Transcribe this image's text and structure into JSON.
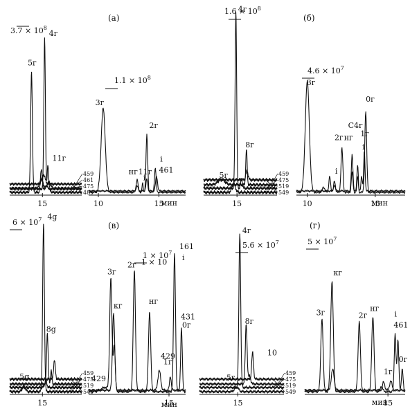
{
  "chart_data": [
    {
      "type": "line",
      "panel_letter": "(а)",
      "xunit": "мин",
      "blocks": [
        {
          "xticks": [
            {
              "label": "15",
              "x": 15
            }
          ],
          "xlim": [
            12,
            18.6
          ],
          "scale": "3.7 × 10",
          "scale_exp": "8",
          "channels": [
            "459",
            "461",
            "475",
            "489"
          ],
          "channel_key": [
            459,
            461,
            475,
            489
          ],
          "ylim": [
            0,
            1
          ],
          "series": [
            {
              "name": "459",
              "peaks": [
                [
                  14.0,
                  0.78,
                  0.08
                ],
                [
                  14.9,
                  0.15,
                  0.08
                ],
                [
                  15.4,
                  0.04,
                  0.2
                ]
              ]
            },
            {
              "name": "461",
              "peaks": [
                [
                  15.2,
                  0.98,
                  0.07
                ],
                [
                  15.5,
                  0.16,
                  0.06
                ]
              ]
            },
            {
              "name": "475",
              "peaks": [
                [
                  14.9,
                  0.06,
                  0.15
                ],
                [
                  15.6,
                  0.04,
                  0.15
                ]
              ]
            },
            {
              "name": "489",
              "peaks": [
                [
                  15.1,
                  0.06,
                  0.15
                ]
              ]
            }
          ],
          "labels": [
            {
              "text": "5г",
              "x": 13.65,
              "y": 0.81
            },
            {
              "text": "4г",
              "x": 15.6,
              "y": 1.0
            },
            {
              "text": "11г",
              "x": 15.9,
              "y": 0.19
            }
          ]
        },
        {
          "xticks": [
            {
              "label": "10",
              "x": 10
            },
            {
              "label": "15",
              "x": 15
            }
          ],
          "xlim": [
            9.2,
            17.2
          ],
          "scale": "1.1 × 10",
          "scale_exp": "8",
          "channels": [],
          "channel_key": [],
          "ylim": [
            0,
            1
          ],
          "series": [
            {
              "name": "main",
              "peaks": [
                [
                  10.4,
                  0.85,
                  0.17
                ],
                [
                  13.2,
                  0.13,
                  0.08
                ],
                [
                  13.65,
                  0.09,
                  0.05
                ],
                [
                  14.0,
                  0.58,
                  0.07
                ],
                [
                  14.7,
                  0.24,
                  0.07
                ]
              ]
            },
            {
              "name": "secondary",
              "peaks": [
                [
                  13.2,
                  0.05,
                  0.08
                ],
                [
                  14.0,
                  0.12,
                  0.07
                ],
                [
                  14.8,
                  0.15,
                  0.08
                ]
              ]
            }
          ],
          "labels": [
            {
              "text": "3г",
              "x": 9.75,
              "y": 0.86
            },
            {
              "text": "нг",
              "x": 12.5,
              "y": 0.16
            },
            {
              "text": "11г",
              "x": 13.3,
              "y": 0.16
            },
            {
              "text": "i",
              "x": 13.7,
              "y": 0.1
            },
            {
              "text": "2г",
              "x": 14.2,
              "y": 0.63
            },
            {
              "text": "i",
              "x": 15.1,
              "y": 0.29
            },
            {
              "text": "461",
              "x": 15.0,
              "y": 0.18
            }
          ]
        }
      ]
    },
    {
      "type": "line",
      "panel_letter": "(б)",
      "xunit": "мин",
      "blocks": [
        {
          "xticks": [
            {
              "label": "15",
              "x": 15
            }
          ],
          "xlim": [
            12,
            18.6
          ],
          "scale": "1.6 × 10",
          "scale_exp": "8",
          "channels": [
            "459",
            "475",
            "519",
            "549"
          ],
          "channel_key": [
            459,
            475,
            519,
            549
          ],
          "ylim": [
            0,
            1
          ],
          "series": [
            {
              "name": "459",
              "peaks": [
                [
                  14.7,
                  0.05,
                  0.15
                ]
              ]
            },
            {
              "name": "475",
              "peaks": [
                [
                  14.9,
                  0.99,
                  0.07
                ],
                [
                  15.4,
                  0.05,
                  0.08
                ]
              ]
            },
            {
              "name": "519",
              "peaks": [
                [
                  15.85,
                  0.2,
                  0.06
                ],
                [
                  13.6,
                  0.03,
                  0.3
                ]
              ]
            },
            {
              "name": "549",
              "peaks": [
                [
                  15.9,
                  0.05,
                  0.1
                ]
              ]
            }
          ],
          "labels": [
            {
              "text": "4г",
              "x": 15.1,
              "y": 1.0
            },
            {
              "text": "8г",
              "x": 15.75,
              "y": 0.24
            },
            {
              "text": "5г",
              "x": 13.4,
              "y": 0.07
            }
          ]
        },
        {
          "xticks": [
            {
              "label": "10",
              "x": 10
            },
            {
              "label": "15",
              "x": 15
            }
          ],
          "xlim": [
            9.2,
            17.2
          ],
          "scale": "4.6 × 10",
          "scale_exp": "7",
          "channels": [],
          "channel_key": [],
          "ylim": [
            0,
            1
          ],
          "series": [
            {
              "name": "main",
              "peaks": [
                [
                  10.0,
                  0.93,
                  0.15
                ],
                [
                  11.2,
                  0.04,
                  0.1
                ],
                [
                  11.65,
                  0.14,
                  0.06
                ],
                [
                  12.0,
                  0.1,
                  0.06
                ],
                [
                  12.55,
                  0.37,
                  0.07
                ],
                [
                  13.3,
                  0.17,
                  0.06
                ],
                [
                  13.7,
                  0.13,
                  0.05
                ],
                [
                  14.3,
                  0.68,
                  0.07
                ]
              ]
            },
            {
              "name": "secondary",
              "peaks": [
                [
                  12.0,
                  0.05,
                  0.06
                ],
                [
                  13.3,
                  0.3,
                  0.06
                ],
                [
                  13.7,
                  0.22,
                  0.05
                ],
                [
                  14.0,
                  0.12,
                  0.05
                ],
                [
                  14.2,
                  0.34,
                  0.05
                ]
              ]
            }
          ],
          "labels": [
            {
              "text": "3г",
              "x": 9.95,
              "y": 0.88
            },
            {
              "text": "i",
              "x": 12.05,
              "y": 0.14
            },
            {
              "text": "2г",
              "x": 12.0,
              "y": 0.42
            },
            {
              "text": "нг",
              "x": 12.7,
              "y": 0.42
            },
            {
              "text": "C4г",
              "x": 13.0,
              "y": 0.52
            },
            {
              "text": "1г",
              "x": 13.9,
              "y": 0.45
            },
            {
              "text": "i",
              "x": 14.05,
              "y": 0.34
            },
            {
              "text": "0г",
              "x": 14.3,
              "y": 0.74
            }
          ]
        }
      ]
    },
    {
      "type": "line",
      "panel_letter": "(в)",
      "xunit": "мин",
      "blocks": [
        {
          "xticks": [
            {
              "label": "15",
              "x": 15
            }
          ],
          "xlim": [
            12,
            18.6
          ],
          "scale": "6 × 10",
          "scale_exp": "7",
          "channels": [
            "459",
            "475",
            "519",
            "549"
          ],
          "channel_key": [
            459,
            475,
            519,
            549
          ],
          "ylim": [
            0,
            1
          ],
          "series": [
            {
              "name": "459",
              "peaks": [
                [
                  13.3,
                  0.03,
                  0.15
                ],
                [
                  15.1,
                  0.98,
                  0.08
                ]
              ]
            },
            {
              "name": "475",
              "peaks": [
                [
                  15.3,
                  0.04,
                  0.1
                ]
              ]
            },
            {
              "name": "519",
              "peaks": [
                [
                  15.45,
                  0.3,
                  0.07
                ],
                [
                  15.8,
                  0.08,
                  0.06
                ]
              ]
            },
            {
              "name": "549",
              "peaks": [
                [
                  16.1,
                  0.11,
                  0.08
                ]
              ]
            }
          ],
          "labels": [
            {
              "text": "4g",
              "x": 15.45,
              "y": 1.0
            },
            {
              "text": "8g",
              "x": 15.35,
              "y": 0.34
            },
            {
              "text": "5g",
              "x": 12.9,
              "y": 0.06
            }
          ]
        },
        {
          "xticks": [
            {
              "label": "15",
              "x": 15
            }
          ],
          "xlim": [
            9.2,
            16.2
          ],
          "scale": "1 × 10",
          "scale_exp": "7",
          "channels": [],
          "channel_key": [],
          "ylim": [
            0,
            1
          ],
          "series": [
            {
              "name": "main",
              "peaks": [
                [
                  10.4,
                  0.03,
                  0.3
                ],
                [
                  10.8,
                  0.8,
                  0.08
                ],
                [
                  11.05,
                  0.33,
                  0.07
                ],
                [
                  12.5,
                  0.86,
                  0.08
                ],
                [
                  13.6,
                  0.57,
                  0.08
                ],
                [
                  15.4,
                  0.98,
                  0.07
                ],
                [
                  15.9,
                  0.45,
                  0.06
                ]
              ]
            },
            {
              "name": "secondary",
              "peaks": [
                [
                  11.0,
                  0.55,
                  0.08
                ],
                [
                  14.3,
                  0.14,
                  0.1
                ],
                [
                  15.1,
                  0.1,
                  0.06
                ]
              ]
            }
          ],
          "labels": [
            {
              "text": "3г",
              "x": 10.55,
              "y": 0.82
            },
            {
              "text": "кг",
              "x": 11.0,
              "y": 0.58
            },
            {
              "text": "429",
              "x": 9.4,
              "y": 0.06
            },
            {
              "text": "2г",
              "x": 12.0,
              "y": 0.87
            },
            {
              "text": "нг",
              "x": 13.55,
              "y": 0.61
            },
            {
              "text": "1 × 10",
              "x": 13.0,
              "y": 0.89
            },
            {
              "text": "429",
              "x": 14.4,
              "y": 0.22
            },
            {
              "text": "1г",
              "x": 14.6,
              "y": 0.18
            },
            {
              "text": "161",
              "x": 15.75,
              "y": 1.0
            },
            {
              "text": "i",
              "x": 15.95,
              "y": 0.92
            },
            {
              "text": "431",
              "x": 15.85,
              "y": 0.5
            },
            {
              "text": "0г",
              "x": 15.95,
              "y": 0.44
            }
          ]
        }
      ]
    },
    {
      "type": "line",
      "panel_letter": "(г)",
      "xunit": "мин",
      "blocks": [
        {
          "xticks": [
            {
              "label": "15",
              "x": 15
            }
          ],
          "xlim": [
            12,
            18.6
          ],
          "scale": "5.6 × 10",
          "scale_exp": "7",
          "channels": [
            "459",
            "475",
            "519",
            "549"
          ],
          "channel_key": [
            459,
            475,
            519,
            549
          ],
          "ylim": [
            0,
            1
          ],
          "series": [
            {
              "name": "459",
              "peaks": [
                [
                  14.9,
                  0.03,
                  0.15
                ]
              ]
            },
            {
              "name": "475",
              "peaks": [
                [
                  15.15,
                  0.99,
                  0.07
                ]
              ]
            },
            {
              "name": "519",
              "peaks": [
                [
                  15.65,
                  0.38,
                  0.07
                ],
                [
                  15.9,
                  0.05,
                  0.1
                ]
              ]
            },
            {
              "name": "549",
              "peaks": [
                [
                  16.15,
                  0.17,
                  0.07
                ]
              ]
            }
          ],
          "labels": [
            {
              "text": "4г",
              "x": 15.35,
              "y": 1.0
            },
            {
              "text": "8г",
              "x": 15.55,
              "y": 0.42
            },
            {
              "text": "5г",
              "x": 14.1,
              "y": 0.06
            },
            {
              "text": "10",
              "x": 17.3,
              "y": 0.22
            }
          ]
        },
        {
          "xticks": [
            {
              "label": "15",
              "x": 15
            }
          ],
          "xlim": [
            9.2,
            16.2
          ],
          "scale": "5 × 10",
          "scale_exp": "7",
          "channels": [],
          "channel_key": [],
          "ylim": [
            0,
            1
          ],
          "series": [
            {
              "name": "main",
              "peaks": [
                [
                  10.4,
                  0.53,
                  0.08
                ],
                [
                  11.1,
                  0.8,
                  0.09
                ],
                [
                  13.0,
                  0.51,
                  0.08
                ],
                [
                  13.95,
                  0.55,
                  0.08
                ],
                [
                  14.55,
                  0.04,
                  0.08
                ],
                [
                  15.5,
                  0.42,
                  0.06
                ],
                [
                  15.7,
                  0.37,
                  0.06
                ],
                [
                  16.0,
                  0.16,
                  0.06
                ]
              ]
            },
            {
              "name": "secondary",
              "peaks": [
                [
                  11.15,
                  0.15,
                  0.1
                ],
                [
                  14.7,
                  0.06,
                  0.08
                ],
                [
                  15.2,
                  0.07,
                  0.08
                ]
              ]
            }
          ],
          "labels": [
            {
              "text": "3г",
              "x": 10.0,
              "y": 0.54
            },
            {
              "text": "кг",
              "x": 11.2,
              "y": 0.83
            },
            {
              "text": "2г",
              "x": 12.95,
              "y": 0.52
            },
            {
              "text": "нг",
              "x": 13.75,
              "y": 0.57
            },
            {
              "text": "1г",
              "x": 14.7,
              "y": 0.11
            },
            {
              "text": "i",
              "x": 15.45,
              "y": 0.53
            },
            {
              "text": "461",
              "x": 15.4,
              "y": 0.45
            },
            {
              "text": "0г",
              "x": 15.75,
              "y": 0.2
            }
          ]
        }
      ]
    }
  ]
}
